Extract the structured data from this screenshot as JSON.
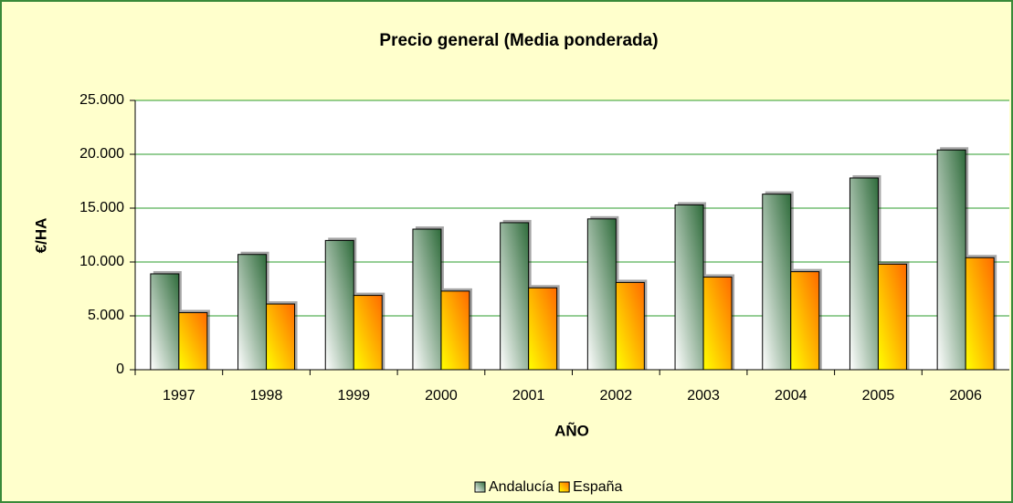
{
  "chart_data": {
    "type": "bar",
    "title": "Precio general (Media ponderada)",
    "x_label": "AÑO",
    "y_label": "€/HA",
    "categories": [
      "1997",
      "1998",
      "1999",
      "2000",
      "2001",
      "2002",
      "2003",
      "2004",
      "2005",
      "2006"
    ],
    "series": [
      {
        "name": "Andalucía",
        "color": "#2e6b3a",
        "values": [
          8900,
          10700,
          12000,
          13050,
          13650,
          14000,
          15300,
          16300,
          17800,
          20400
        ]
      },
      {
        "name": "España",
        "color": "#ff6a00",
        "values": [
          5300,
          6100,
          6900,
          7300,
          7600,
          8100,
          8600,
          9100,
          9800,
          10400
        ]
      }
    ],
    "ylim": [
      0,
      25000
    ],
    "yticks": [
      0,
      {
        "value": 5000,
        "label": "5.000"
      },
      {
        "value": 10000,
        "label": "10.000"
      },
      {
        "value": 15000,
        "label": "15.000"
      },
      {
        "value": 20000,
        "label": "20.000"
      },
      {
        "value": 25000,
        "label": "25.000"
      }
    ],
    "grid": true,
    "legend": "bottom"
  }
}
